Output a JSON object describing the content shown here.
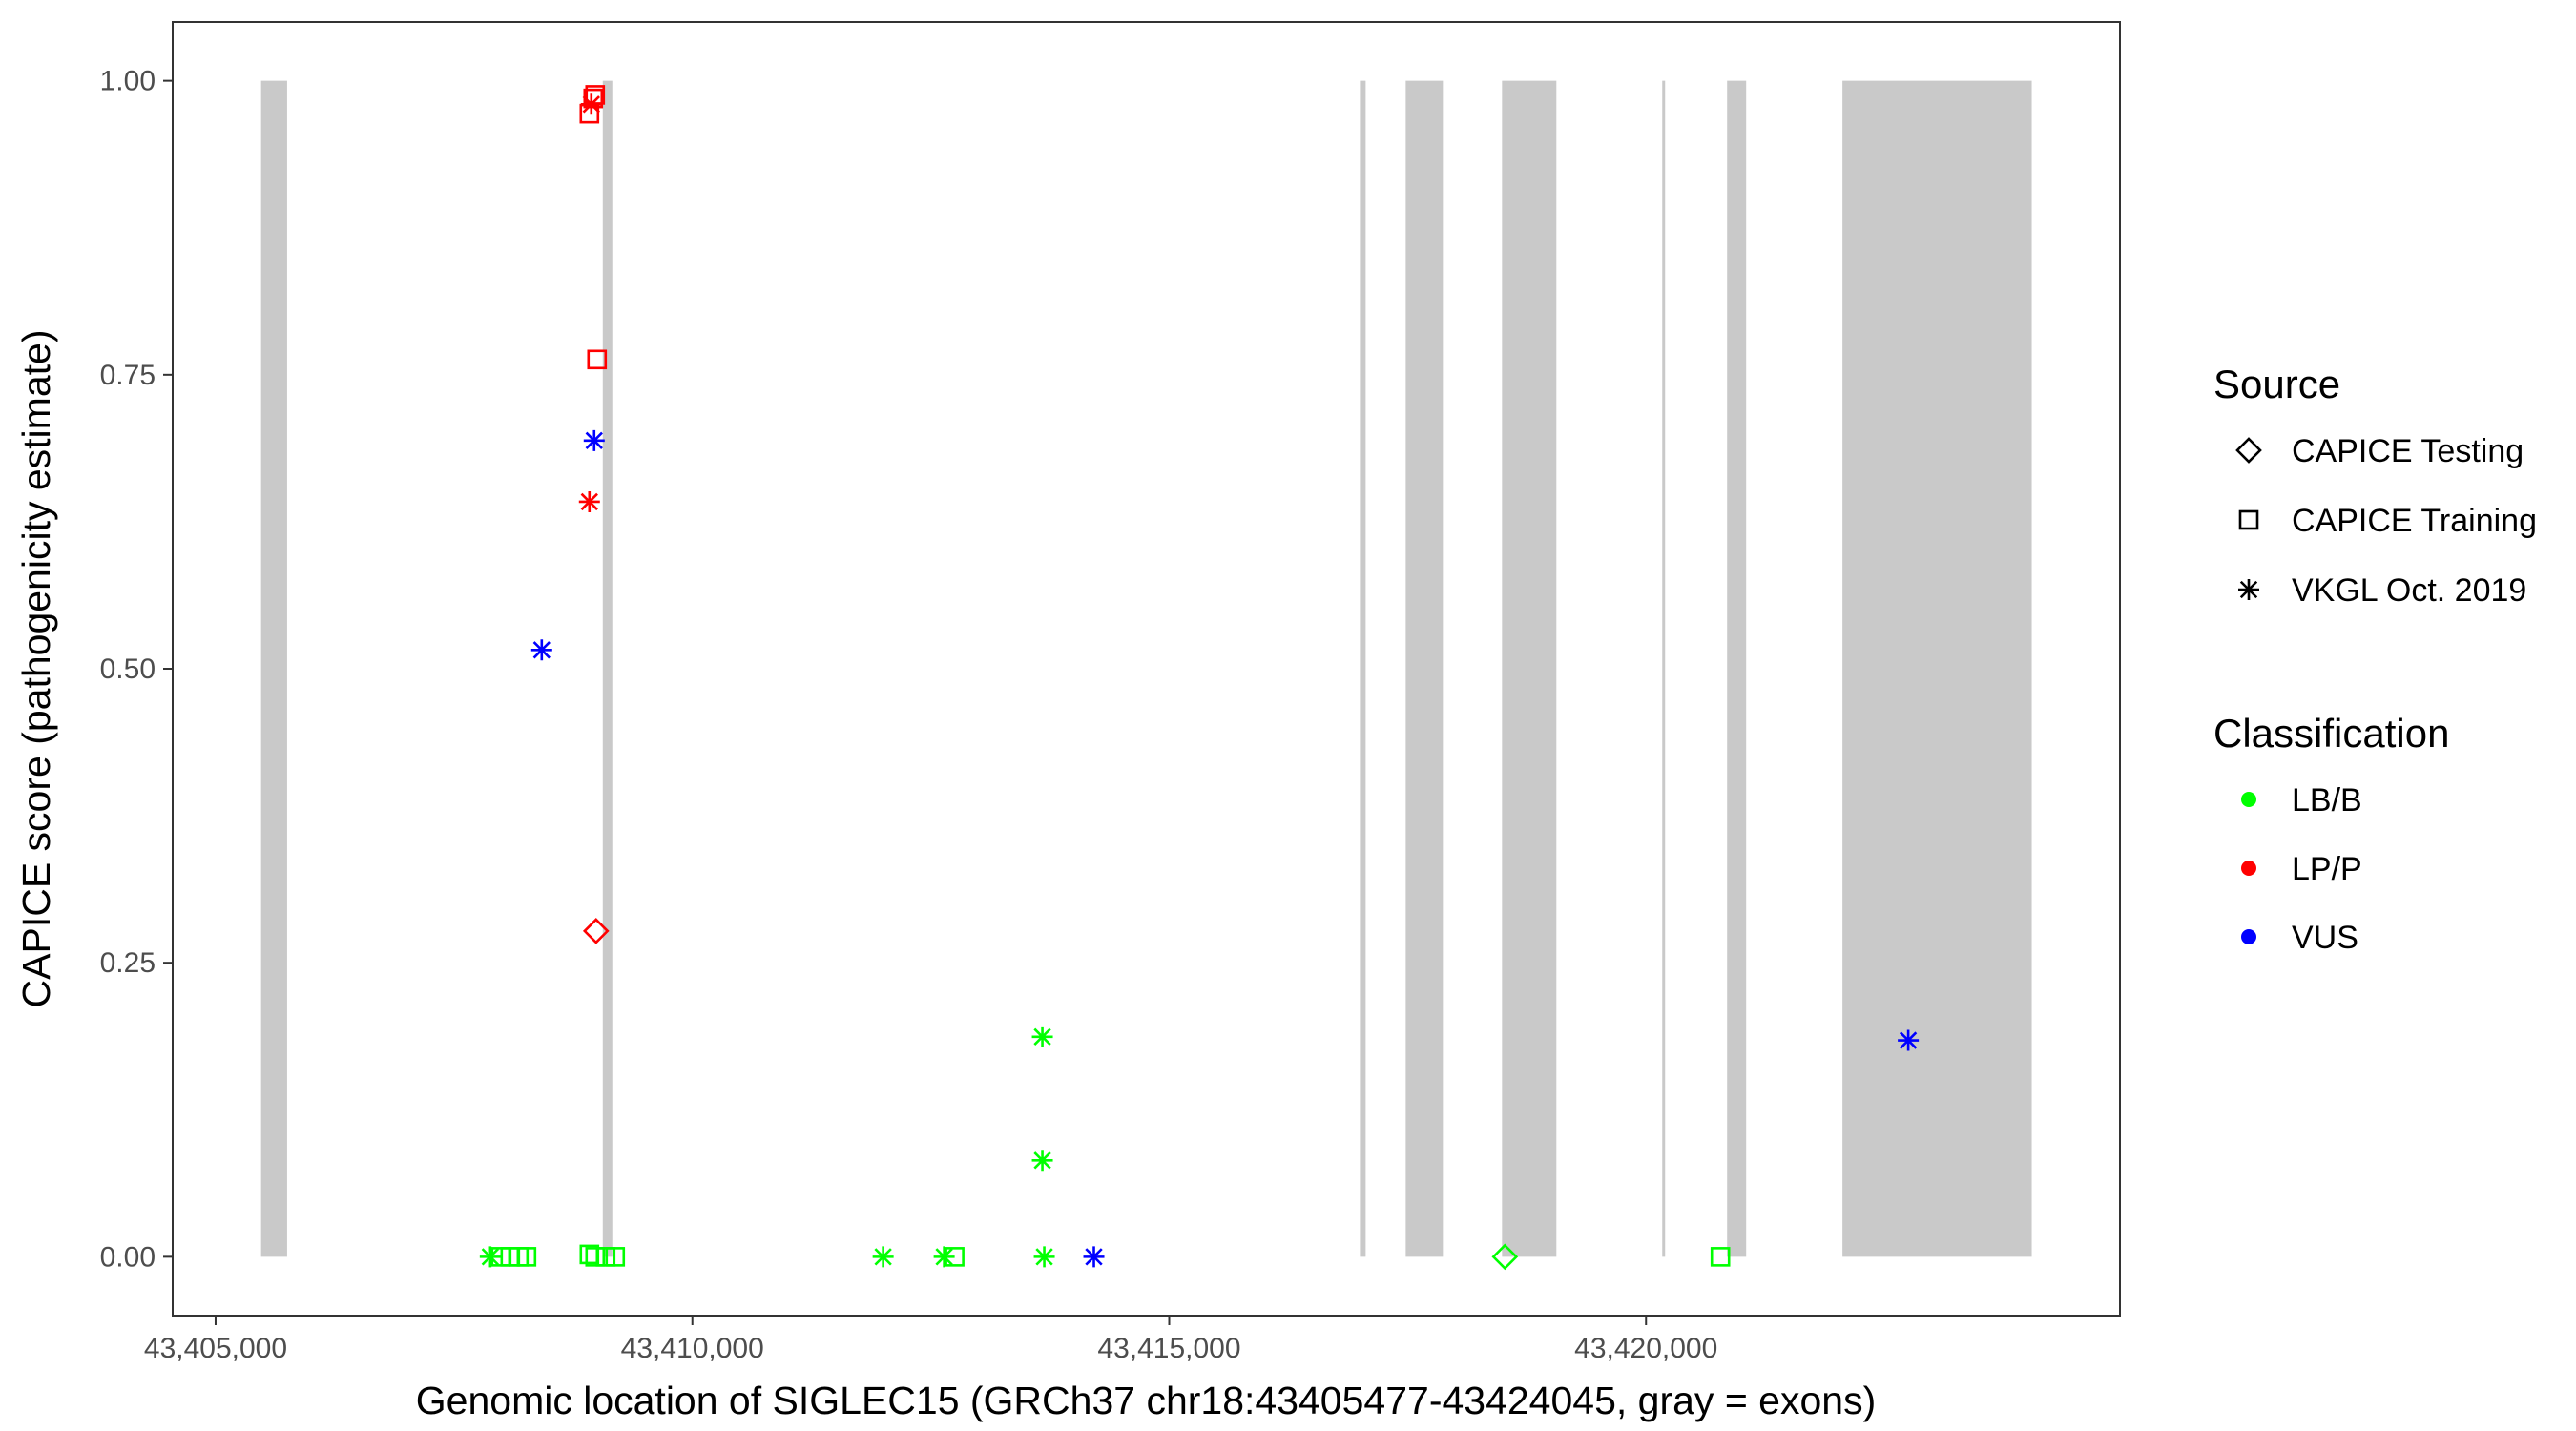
{
  "chart_data": {
    "type": "scatter",
    "xlabel": "Genomic location of SIGLEC15 (GRCh37 chr18:43405477-43424045, gray = exons)",
    "ylabel": "CAPICE score (pathogenicity estimate)",
    "xlim": [
      43404550,
      43424970
    ],
    "ylim": [
      -0.05,
      1.05
    ],
    "x_ticks": [
      {
        "value": 43405000,
        "label": "43,405,000"
      },
      {
        "value": 43410000,
        "label": "43,410,000"
      },
      {
        "value": 43415000,
        "label": "43,415,000"
      },
      {
        "value": 43420000,
        "label": "43,420,000"
      }
    ],
    "y_ticks": [
      {
        "value": 0,
        "label": "0.00"
      },
      {
        "value": 0.25,
        "label": "0.25"
      },
      {
        "value": 0.5,
        "label": "0.50"
      },
      {
        "value": 0.75,
        "label": "0.75"
      },
      {
        "value": 1,
        "label": "1.00"
      }
    ],
    "grid": false,
    "legend_position": "right",
    "exon_color": "#C9C9C9",
    "exons": [
      [
        43405477,
        43405750
      ],
      [
        43409060,
        43409160
      ],
      [
        43417000,
        43417060
      ],
      [
        43417480,
        43417870
      ],
      [
        43418490,
        43419060
      ],
      [
        43420170,
        43420200
      ],
      [
        43420850,
        43421050
      ],
      [
        43422060,
        43424045
      ]
    ],
    "points": [
      {
        "x": 43408980,
        "y": 0.988,
        "source": "CAPICE Training",
        "classification": "LP/P"
      },
      {
        "x": 43408960,
        "y": 0.985,
        "source": "CAPICE Training",
        "classification": "LP/P"
      },
      {
        "x": 43408940,
        "y": 0.98,
        "source": "VKGL Oct. 2019",
        "classification": "LP/P"
      },
      {
        "x": 43408920,
        "y": 0.972,
        "source": "CAPICE Training",
        "classification": "LP/P"
      },
      {
        "x": 43409000,
        "y": 0.763,
        "source": "CAPICE Training",
        "classification": "LP/P"
      },
      {
        "x": 43408970,
        "y": 0.694,
        "source": "VKGL Oct. 2019",
        "classification": "VUS"
      },
      {
        "x": 43408920,
        "y": 0.642,
        "source": "VKGL Oct. 2019",
        "classification": "LP/P"
      },
      {
        "x": 43408420,
        "y": 0.516,
        "source": "VKGL Oct. 2019",
        "classification": "VUS"
      },
      {
        "x": 43408990,
        "y": 0.277,
        "source": "CAPICE Testing",
        "classification": "LP/P"
      },
      {
        "x": 43413670,
        "y": 0.187,
        "source": "VKGL Oct. 2019",
        "classification": "LB/B"
      },
      {
        "x": 43413670,
        "y": 0.082,
        "source": "VKGL Oct. 2019",
        "classification": "LB/B"
      },
      {
        "x": 43422750,
        "y": 0.184,
        "source": "VKGL Oct. 2019",
        "classification": "VUS"
      },
      {
        "x": 43407880,
        "y": 0,
        "source": "VKGL Oct. 2019",
        "classification": "LB/B"
      },
      {
        "x": 43407990,
        "y": 0,
        "source": "CAPICE Training",
        "classification": "LB/B"
      },
      {
        "x": 43408090,
        "y": 0,
        "source": "CAPICE Training",
        "classification": "LB/B"
      },
      {
        "x": 43408180,
        "y": 0,
        "source": "CAPICE Training",
        "classification": "LB/B"
      },
      {
        "x": 43408260,
        "y": 0,
        "source": "CAPICE Training",
        "classification": "LB/B"
      },
      {
        "x": 43408920,
        "y": 0.002,
        "source": "CAPICE Training",
        "classification": "LB/B"
      },
      {
        "x": 43408980,
        "y": 0,
        "source": "CAPICE Training",
        "classification": "LB/B"
      },
      {
        "x": 43409090,
        "y": 0,
        "source": "CAPICE Training",
        "classification": "LB/B"
      },
      {
        "x": 43409190,
        "y": 0,
        "source": "CAPICE Training",
        "classification": "LB/B"
      },
      {
        "x": 43412000,
        "y": 0,
        "source": "VKGL Oct. 2019",
        "classification": "LB/B"
      },
      {
        "x": 43412640,
        "y": 0,
        "source": "VKGL Oct. 2019",
        "classification": "LB/B"
      },
      {
        "x": 43412750,
        "y": 0,
        "source": "CAPICE Training",
        "classification": "LB/B"
      },
      {
        "x": 43413690,
        "y": 0,
        "source": "VKGL Oct. 2019",
        "classification": "LB/B"
      },
      {
        "x": 43414210,
        "y": 0,
        "source": "VKGL Oct. 2019",
        "classification": "VUS"
      },
      {
        "x": 43418520,
        "y": 0,
        "source": "CAPICE Testing",
        "classification": "LB/B"
      },
      {
        "x": 43420780,
        "y": 0,
        "source": "CAPICE Training",
        "classification": "LB/B"
      }
    ],
    "legend": {
      "source_title": "Source",
      "sources": [
        {
          "label": "CAPICE Testing",
          "shape": "diamond"
        },
        {
          "label": "CAPICE Training",
          "shape": "square"
        },
        {
          "label": "VKGL Oct. 2019",
          "shape": "asterisk"
        }
      ],
      "classification_title": "Classification",
      "classifications": [
        {
          "label": "LB/B",
          "color": "#00FF00"
        },
        {
          "label": "LP/P",
          "color": "#FF0000"
        },
        {
          "label": "VUS",
          "color": "#0000FF"
        }
      ]
    }
  }
}
